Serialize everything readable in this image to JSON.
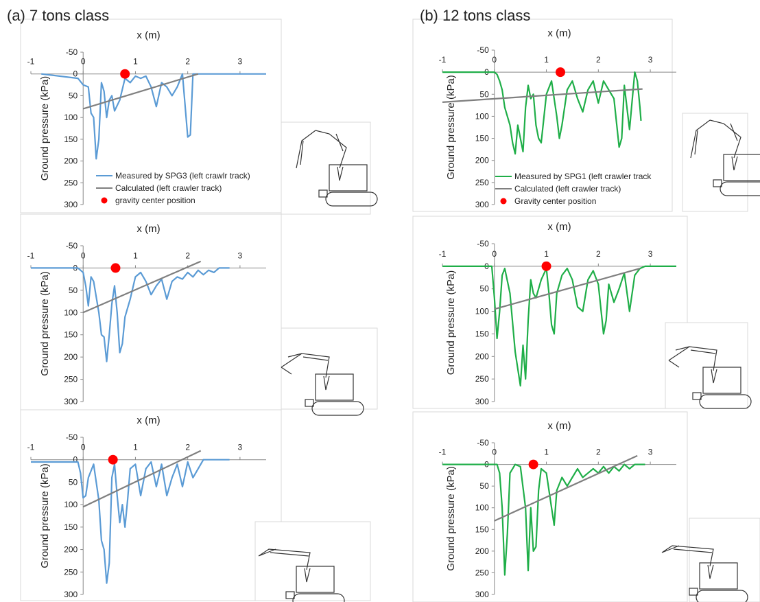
{
  "chart_data": [
    {
      "type": "line",
      "title": "(a) 7 tons class",
      "xlabel": "x (m)",
      "ylabel": "Ground pressure (kPa)",
      "xlim": [
        -1,
        3.5
      ],
      "xticks": [
        -1,
        0,
        1,
        2,
        3
      ],
      "ylim": [
        -50,
        300
      ],
      "yticks": [
        -50,
        0,
        50,
        100,
        150,
        200,
        250,
        300
      ],
      "y_inverted": true,
      "legend": true,
      "series": [
        {
          "name": "Measured by SPG3 (left crawlr track)",
          "color": "#5b9bd5",
          "style": "line",
          "x": [
            -0.8,
            -0.1,
            0,
            0.1,
            0.15,
            0.2,
            0.25,
            0.3,
            0.35,
            0.4,
            0.45,
            0.5,
            0.55,
            0.6,
            0.7,
            0.8,
            0.9,
            1.0,
            1.1,
            1.2,
            1.3,
            1.4,
            1.5,
            1.6,
            1.7,
            1.8,
            1.9,
            2.0,
            2.05,
            2.1,
            2.3,
            3.5
          ],
          "values": [
            0,
            10,
            25,
            30,
            90,
            100,
            195,
            150,
            20,
            40,
            100,
            60,
            50,
            85,
            60,
            10,
            20,
            5,
            10,
            5,
            30,
            75,
            20,
            30,
            50,
            30,
            0,
            145,
            140,
            0,
            0,
            0
          ]
        },
        {
          "name": "Calculated (left crawler track)",
          "color": "#7f7f7f",
          "style": "line",
          "x": [
            0,
            2.2
          ],
          "values": [
            80,
            0
          ]
        },
        {
          "name": "gravity center position",
          "color": "#ff0000",
          "style": "marker",
          "x": [
            0.8
          ],
          "values": [
            0
          ]
        }
      ]
    },
    {
      "type": "line",
      "xlabel": "x (m)",
      "ylabel": "Ground pressure (kPa)",
      "xlim": [
        -1,
        3.5
      ],
      "xticks": [
        -1,
        0,
        1,
        2,
        3
      ],
      "ylim": [
        -50,
        300
      ],
      "yticks": [
        -50,
        0,
        50,
        100,
        150,
        200,
        250,
        300
      ],
      "y_inverted": true,
      "legend": false,
      "series": [
        {
          "color": "#5b9bd5",
          "style": "line",
          "x": [
            -1,
            -0.1,
            0,
            0.05,
            0.1,
            0.15,
            0.2,
            0.3,
            0.35,
            0.4,
            0.45,
            0.5,
            0.55,
            0.6,
            0.65,
            0.7,
            0.75,
            0.8,
            0.9,
            1.0,
            1.1,
            1.2,
            1.3,
            1.4,
            1.5,
            1.6,
            1.7,
            1.8,
            1.9,
            2.0,
            2.1,
            2.2,
            2.3,
            2.4,
            2.5,
            2.6,
            2.8
          ],
          "values": [
            0,
            0,
            10,
            40,
            85,
            20,
            30,
            100,
            150,
            155,
            210,
            150,
            80,
            40,
            100,
            190,
            170,
            110,
            70,
            20,
            10,
            30,
            60,
            40,
            25,
            70,
            30,
            20,
            25,
            10,
            20,
            5,
            15,
            5,
            10,
            0,
            0
          ]
        },
        {
          "color": "#7f7f7f",
          "style": "line",
          "x": [
            0,
            2.25
          ],
          "values": [
            100,
            -15
          ]
        },
        {
          "color": "#ff0000",
          "style": "marker",
          "x": [
            0.62
          ],
          "values": [
            0
          ]
        }
      ]
    },
    {
      "type": "line",
      "xlabel": "x (m)",
      "ylabel": "Ground pressure (kPa)",
      "xlim": [
        -1,
        3.5
      ],
      "xticks": [
        -1,
        0,
        1,
        2,
        3
      ],
      "ylim": [
        -50,
        300
      ],
      "yticks": [
        -50,
        0,
        50,
        100,
        150,
        200,
        250,
        300
      ],
      "y_inverted": true,
      "legend": false,
      "series": [
        {
          "color": "#5b9bd5",
          "style": "line",
          "x": [
            -1,
            -0.1,
            -0.05,
            0,
            0.05,
            0.1,
            0.2,
            0.3,
            0.35,
            0.4,
            0.45,
            0.5,
            0.55,
            0.6,
            0.65,
            0.7,
            0.75,
            0.8,
            0.85,
            0.9,
            1.0,
            1.1,
            1.2,
            1.3,
            1.4,
            1.5,
            1.6,
            1.7,
            1.8,
            1.9,
            2.0,
            2.1,
            2.2,
            2.3,
            2.8
          ],
          "values": [
            5,
            5,
            30,
            85,
            80,
            40,
            10,
            90,
            180,
            200,
            275,
            230,
            40,
            10,
            80,
            140,
            100,
            150,
            90,
            20,
            10,
            80,
            20,
            5,
            60,
            10,
            80,
            40,
            10,
            60,
            5,
            40,
            20,
            0,
            0
          ]
        },
        {
          "color": "#7f7f7f",
          "style": "line",
          "x": [
            0,
            2.25
          ],
          "values": [
            105,
            -20
          ]
        },
        {
          "color": "#ff0000",
          "style": "marker",
          "x": [
            0.57
          ],
          "values": [
            0
          ]
        }
      ]
    },
    {
      "type": "line",
      "title": "(b) 12 tons class",
      "xlabel": "x (m)",
      "ylabel": "Ground pressure (kPa)",
      "xlim": [
        -1,
        3.5
      ],
      "xticks": [
        -1,
        0,
        1,
        2,
        3
      ],
      "ylim": [
        -50,
        300
      ],
      "yticks": [
        -50,
        0,
        50,
        100,
        150,
        200,
        250,
        300
      ],
      "y_inverted": true,
      "legend": true,
      "series": [
        {
          "name": "Measured by SPG1 (left crawler track",
          "color": "#1fae48",
          "style": "line",
          "x": [
            -1,
            0,
            0.05,
            0.1,
            0.15,
            0.2,
            0.3,
            0.35,
            0.4,
            0.45,
            0.5,
            0.55,
            0.6,
            0.65,
            0.7,
            0.75,
            0.8,
            0.85,
            0.9,
            1.0,
            1.1,
            1.2,
            1.25,
            1.3,
            1.4,
            1.5,
            1.6,
            1.7,
            1.8,
            1.9,
            2.0,
            2.1,
            2.2,
            2.3,
            2.4,
            2.45,
            2.5,
            2.6,
            2.7,
            2.75,
            2.8,
            2.82
          ],
          "values": [
            0,
            0,
            5,
            20,
            40,
            80,
            120,
            160,
            185,
            120,
            150,
            180,
            80,
            30,
            60,
            50,
            120,
            150,
            160,
            50,
            20,
            100,
            150,
            120,
            40,
            20,
            60,
            90,
            40,
            20,
            70,
            20,
            40,
            60,
            170,
            150,
            30,
            130,
            0,
            20,
            80,
            110
          ]
        },
        {
          "name": "Calculated (left crawler track)",
          "color": "#7f7f7f",
          "style": "line",
          "x": [
            -1,
            2.85
          ],
          "values": [
            68,
            38
          ]
        },
        {
          "name": "Gravity center position",
          "color": "#ff0000",
          "style": "marker",
          "x": [
            1.27
          ],
          "values": [
            0
          ]
        }
      ]
    },
    {
      "type": "line",
      "xlabel": "x (m)",
      "ylabel": "Ground pressure (kPa)",
      "xlim": [
        -1,
        3.5
      ],
      "xticks": [
        -1,
        0,
        1,
        2,
        3
      ],
      "ylim": [
        -50,
        300
      ],
      "yticks": [
        -50,
        0,
        50,
        100,
        150,
        200,
        250,
        300
      ],
      "y_inverted": true,
      "legend": false,
      "series": [
        {
          "color": "#1fae48",
          "style": "line",
          "x": [
            -1,
            -0.05,
            0,
            0.05,
            0.1,
            0.15,
            0.2,
            0.3,
            0.4,
            0.5,
            0.55,
            0.6,
            0.65,
            0.7,
            0.75,
            0.8,
            0.9,
            1.0,
            1.05,
            1.1,
            1.15,
            1.2,
            1.3,
            1.4,
            1.5,
            1.6,
            1.7,
            1.8,
            1.9,
            2.0,
            2.1,
            2.15,
            2.2,
            2.3,
            2.4,
            2.5,
            2.6,
            2.7,
            2.8,
            2.9,
            3.5
          ],
          "values": [
            0,
            0,
            70,
            160,
            100,
            20,
            5,
            60,
            190,
            265,
            175,
            250,
            120,
            30,
            60,
            70,
            30,
            5,
            60,
            130,
            150,
            60,
            20,
            5,
            30,
            90,
            100,
            30,
            10,
            40,
            150,
            120,
            40,
            80,
            50,
            15,
            100,
            20,
            5,
            0,
            0
          ]
        },
        {
          "color": "#7f7f7f",
          "style": "line",
          "x": [
            0,
            2.8
          ],
          "values": [
            95,
            5
          ]
        },
        {
          "color": "#ff0000",
          "style": "marker",
          "x": [
            1.0
          ],
          "values": [
            0
          ]
        }
      ]
    },
    {
      "type": "line",
      "xlabel": "x (m)",
      "ylabel": "Ground pressure (kPa)",
      "xlim": [
        -1,
        3.5
      ],
      "xticks": [
        -1,
        0,
        1,
        2,
        3
      ],
      "ylim": [
        -50,
        300
      ],
      "yticks": [
        -50,
        0,
        50,
        100,
        150,
        200,
        250,
        300
      ],
      "y_inverted": true,
      "legend": false,
      "series": [
        {
          "color": "#1fae48",
          "style": "line",
          "x": [
            -1,
            0.05,
            0.1,
            0.15,
            0.2,
            0.25,
            0.3,
            0.4,
            0.5,
            0.6,
            0.65,
            0.7,
            0.75,
            0.8,
            0.85,
            0.9,
            1.0,
            1.1,
            1.15,
            1.2,
            1.3,
            1.4,
            1.5,
            1.6,
            1.7,
            1.8,
            1.9,
            2.0,
            2.1,
            2.2,
            2.3,
            2.4,
            2.5,
            2.6,
            2.7,
            2.9
          ],
          "values": [
            0,
            0,
            20,
            100,
            255,
            160,
            20,
            0,
            5,
            100,
            245,
            100,
            200,
            190,
            60,
            10,
            20,
            100,
            140,
            60,
            30,
            50,
            30,
            10,
            30,
            20,
            10,
            20,
            5,
            20,
            5,
            15,
            0,
            10,
            0,
            0
          ]
        },
        {
          "color": "#7f7f7f",
          "style": "line",
          "x": [
            0,
            2.75
          ],
          "values": [
            130,
            -20
          ]
        },
        {
          "color": "#ff0000",
          "style": "marker",
          "x": [
            0.75
          ],
          "values": [
            0
          ]
        }
      ]
    }
  ]
}
